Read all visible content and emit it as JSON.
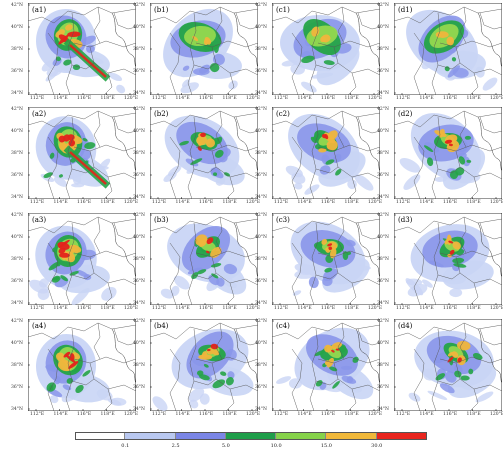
{
  "panels": [
    {
      "label": "(a1)",
      "hot": 1.0
    },
    {
      "label": "(b1)",
      "hot": 0.55
    },
    {
      "label": "(c1)",
      "hot": 0.6
    },
    {
      "label": "(d1)",
      "hot": 0.65
    },
    {
      "label": "(a2)",
      "hot": 0.95
    },
    {
      "label": "(b2)",
      "hot": 0.5
    },
    {
      "label": "(c2)",
      "hot": 0.55
    },
    {
      "label": "(d2)",
      "hot": 0.55
    },
    {
      "label": "(a3)",
      "hot": 0.9
    },
    {
      "label": "(b3)",
      "hot": 0.5
    },
    {
      "label": "(c3)",
      "hot": 0.5
    },
    {
      "label": "(d3)",
      "hot": 0.5
    },
    {
      "label": "(a4)",
      "hot": 0.9
    },
    {
      "label": "(b4)",
      "hot": 0.5
    },
    {
      "label": "(c4)",
      "hot": 0.45
    },
    {
      "label": "(d4)",
      "hot": 0.5
    }
  ],
  "axes": {
    "lat_ticks": [
      "42°N",
      "40°N",
      "38°N",
      "36°N",
      "34°N"
    ],
    "lon_ticks": [
      "112°E",
      "114°E",
      "116°E",
      "118°E",
      "120°E"
    ]
  },
  "legend": {
    "labels": [
      "0.1",
      "2.5",
      "5.0",
      "10.0",
      "15.0",
      "30.0"
    ],
    "colors": [
      "#ffffff",
      "#b9c8f0",
      "#7b86e6",
      "#1f9e4a",
      "#86d24a",
      "#f0b83a",
      "#e8251e"
    ]
  },
  "colors": {
    "lightblue": "#c9d5f5",
    "blue": "#8a96ea",
    "green": "#25a447",
    "lightgreen": "#93d84f",
    "orange": "#f0b53c",
    "red": "#e4221b",
    "border": "#555555"
  }
}
